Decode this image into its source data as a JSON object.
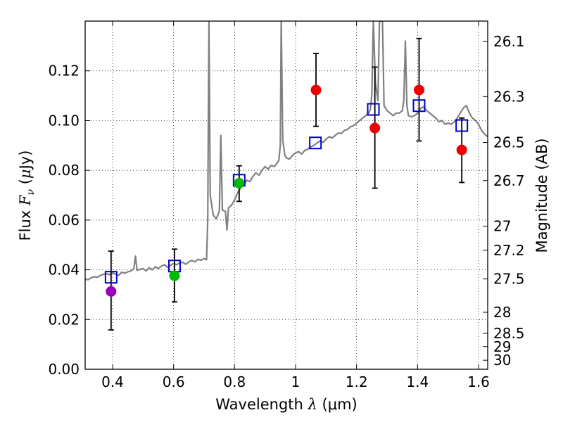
{
  "chart_data": {
    "type": "scatter",
    "xlabel": {
      "prefix": "Wavelength",
      "symbol": "λ",
      "unit": "(μm)"
    },
    "ylabel": {
      "prefix": "Flux",
      "symbol": "F",
      "subscript": "ν",
      "unit_open": "(",
      "unit_mu": "μ",
      "unit_rest": "Jy)"
    },
    "ylabel_right": "Magnitude (AB)",
    "xlim": [
      0.31,
      1.63
    ],
    "ylim": [
      0.0,
      0.14
    ],
    "grid": true,
    "x_ticks": [
      0.4,
      0.6,
      0.8,
      1.0,
      1.2,
      1.4,
      1.6
    ],
    "x_tick_labels": [
      "0.4",
      "0.6",
      "0.8",
      "1",
      "1.2",
      "1.4",
      "1.6"
    ],
    "y_ticks": [
      0.0,
      0.02,
      0.04,
      0.06,
      0.08,
      0.1,
      0.12
    ],
    "y_tick_labels": [
      "0.00",
      "0.02",
      "0.04",
      "0.06",
      "0.08",
      "0.10",
      "0.12"
    ],
    "mag_ticks": [
      26.1,
      26.3,
      26.5,
      26.7,
      27.0,
      27.2,
      27.5,
      28.0,
      28.5,
      29.0,
      30.0
    ],
    "mag_tick_labels": [
      "26.1",
      "26.3",
      "26.5",
      "26.7",
      "27",
      "27.2",
      "27.5",
      "28",
      "28.5",
      "29",
      "30"
    ],
    "colors": {
      "model_line": "#808080",
      "model_squares": "#0000cc",
      "blue_band": "#9900bb",
      "optical_band": "#00bb00",
      "infrared_band": "#ee0000",
      "error_bars": "#000000"
    },
    "observed": [
      {
        "x": 0.395,
        "y": 0.0313,
        "err_low": 0.0158,
        "err_high": 0.0475,
        "color": "#9900bb"
      },
      {
        "x": 0.603,
        "y": 0.0376,
        "err_low": 0.0271,
        "err_high": 0.0483,
        "color": "#00bb00"
      },
      {
        "x": 0.815,
        "y": 0.0748,
        "err_low": 0.0675,
        "err_high": 0.0818,
        "color": "#00bb00"
      },
      {
        "x": 1.067,
        "y": 0.1123,
        "err_low": 0.0977,
        "err_high": 0.127,
        "color": "#ee0000"
      },
      {
        "x": 1.26,
        "y": 0.097,
        "err_low": 0.0728,
        "err_high": 0.1215,
        "color": "#ee0000"
      },
      {
        "x": 1.405,
        "y": 0.1123,
        "err_low": 0.0918,
        "err_high": 0.133,
        "color": "#ee0000"
      },
      {
        "x": 1.545,
        "y": 0.0882,
        "err_low": 0.0751,
        "err_high": 0.101,
        "color": "#ee0000"
      }
    ],
    "model_photometry": [
      {
        "x": 0.395,
        "y": 0.037
      },
      {
        "x": 0.603,
        "y": 0.0415
      },
      {
        "x": 0.815,
        "y": 0.076
      },
      {
        "x": 1.065,
        "y": 0.091
      },
      {
        "x": 1.255,
        "y": 0.1045
      },
      {
        "x": 1.405,
        "y": 0.106
      },
      {
        "x": 1.545,
        "y": 0.098
      }
    ],
    "model_spectrum": [
      [
        0.31,
        0.0362
      ],
      [
        0.32,
        0.036
      ],
      [
        0.33,
        0.0368
      ],
      [
        0.34,
        0.0372
      ],
      [
        0.35,
        0.037
      ],
      [
        0.36,
        0.0378
      ],
      [
        0.37,
        0.0382
      ],
      [
        0.38,
        0.0384
      ],
      [
        0.39,
        0.038
      ],
      [
        0.4,
        0.0388
      ],
      [
        0.41,
        0.0382
      ],
      [
        0.42,
        0.0378
      ],
      [
        0.43,
        0.039
      ],
      [
        0.44,
        0.0386
      ],
      [
        0.45,
        0.0392
      ],
      [
        0.46,
        0.0395
      ],
      [
        0.47,
        0.0405
      ],
      [
        0.475,
        0.0455
      ],
      [
        0.48,
        0.0398
      ],
      [
        0.49,
        0.0402
      ],
      [
        0.5,
        0.0405
      ],
      [
        0.51,
        0.0395
      ],
      [
        0.52,
        0.0408
      ],
      [
        0.53,
        0.04
      ],
      [
        0.54,
        0.0412
      ],
      [
        0.55,
        0.0405
      ],
      [
        0.56,
        0.0415
      ],
      [
        0.57,
        0.042
      ],
      [
        0.58,
        0.041
      ],
      [
        0.59,
        0.0418
      ],
      [
        0.6,
        0.0425
      ],
      [
        0.61,
        0.042
      ],
      [
        0.62,
        0.0428
      ],
      [
        0.63,
        0.043
      ],
      [
        0.64,
        0.0422
      ],
      [
        0.65,
        0.0432
      ],
      [
        0.66,
        0.0438
      ],
      [
        0.67,
        0.0432
      ],
      [
        0.68,
        0.0442
      ],
      [
        0.69,
        0.0438
      ],
      [
        0.7,
        0.0445
      ],
      [
        0.708,
        0.044
      ],
      [
        0.712,
        0.06
      ],
      [
        0.716,
        0.14
      ],
      [
        0.72,
        0.07
      ],
      [
        0.73,
        0.062
      ],
      [
        0.74,
        0.0605
      ],
      [
        0.75,
        0.0635
      ],
      [
        0.755,
        0.094
      ],
      [
        0.76,
        0.064
      ],
      [
        0.77,
        0.0635
      ],
      [
        0.775,
        0.056
      ],
      [
        0.78,
        0.065
      ],
      [
        0.79,
        0.066
      ],
      [
        0.8,
        0.068
      ],
      [
        0.81,
        0.071
      ],
      [
        0.82,
        0.073
      ],
      [
        0.83,
        0.074
      ],
      [
        0.84,
        0.076
      ],
      [
        0.85,
        0.0755
      ],
      [
        0.86,
        0.0775
      ],
      [
        0.87,
        0.079
      ],
      [
        0.88,
        0.078
      ],
      [
        0.89,
        0.08
      ],
      [
        0.9,
        0.0815
      ],
      [
        0.91,
        0.0805
      ],
      [
        0.92,
        0.082
      ],
      [
        0.93,
        0.0815
      ],
      [
        0.94,
        0.083
      ],
      [
        0.945,
        0.084
      ],
      [
        0.95,
        0.09
      ],
      [
        0.953,
        0.14
      ],
      [
        0.958,
        0.092
      ],
      [
        0.965,
        0.086
      ],
      [
        0.97,
        0.085
      ],
      [
        0.98,
        0.0845
      ],
      [
        0.99,
        0.086
      ],
      [
        1.0,
        0.087
      ],
      [
        1.01,
        0.0875
      ],
      [
        1.02,
        0.0865
      ],
      [
        1.03,
        0.088
      ],
      [
        1.04,
        0.0885
      ],
      [
        1.05,
        0.0895
      ],
      [
        1.06,
        0.09
      ],
      [
        1.07,
        0.091
      ],
      [
        1.08,
        0.0918
      ],
      [
        1.09,
        0.0912
      ],
      [
        1.1,
        0.0925
      ],
      [
        1.11,
        0.0935
      ],
      [
        1.12,
        0.093
      ],
      [
        1.13,
        0.094
      ],
      [
        1.14,
        0.095
      ],
      [
        1.15,
        0.0948
      ],
      [
        1.16,
        0.096
      ],
      [
        1.17,
        0.0965
      ],
      [
        1.18,
        0.0975
      ],
      [
        1.19,
        0.098
      ],
      [
        1.2,
        0.099
      ],
      [
        1.21,
        0.1
      ],
      [
        1.22,
        0.101
      ],
      [
        1.23,
        0.102
      ],
      [
        1.24,
        0.103
      ],
      [
        1.245,
        0.1045
      ],
      [
        1.25,
        0.11
      ],
      [
        1.255,
        0.14
      ],
      [
        1.262,
        0.115
      ],
      [
        1.27,
        0.108
      ],
      [
        1.275,
        0.14
      ],
      [
        1.285,
        0.14
      ],
      [
        1.29,
        0.106
      ],
      [
        1.3,
        0.104
      ],
      [
        1.31,
        0.103
      ],
      [
        1.32,
        0.102
      ],
      [
        1.33,
        0.103
      ],
      [
        1.34,
        0.103
      ],
      [
        1.35,
        0.104
      ],
      [
        1.355,
        0.108
      ],
      [
        1.36,
        0.132
      ],
      [
        1.365,
        0.106
      ],
      [
        1.37,
        0.102
      ],
      [
        1.38,
        0.1015
      ],
      [
        1.39,
        0.102
      ],
      [
        1.4,
        0.103
      ],
      [
        1.41,
        0.105
      ],
      [
        1.42,
        0.1055
      ],
      [
        1.43,
        0.104
      ],
      [
        1.44,
        0.103
      ],
      [
        1.45,
        0.102
      ],
      [
        1.46,
        0.101
      ],
      [
        1.47,
        0.0995
      ],
      [
        1.48,
        0.1
      ],
      [
        1.49,
        0.0985
      ],
      [
        1.5,
        0.099
      ],
      [
        1.51,
        0.0985
      ],
      [
        1.52,
        0.0995
      ],
      [
        1.53,
        0.101
      ],
      [
        1.54,
        0.103
      ],
      [
        1.55,
        0.105
      ],
      [
        1.56,
        0.106
      ],
      [
        1.57,
        0.103
      ],
      [
        1.58,
        0.101
      ],
      [
        1.59,
        0.1
      ],
      [
        1.6,
        0.0985
      ],
      [
        1.61,
        0.096
      ],
      [
        1.62,
        0.0945
      ],
      [
        1.63,
        0.0935
      ]
    ]
  }
}
